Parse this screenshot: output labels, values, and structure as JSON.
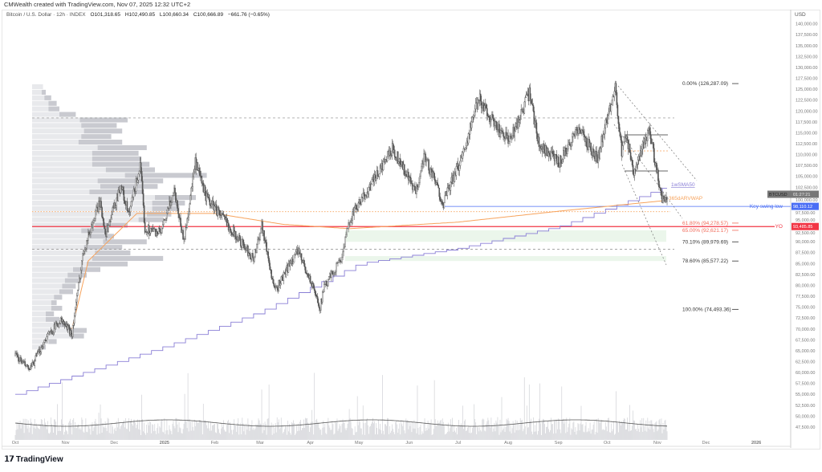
{
  "credit": "CMWealth created with TradingView.com, Nov 07, 2025 12:32 UTC+2",
  "legend": {
    "symbol": "Bitcoin / U.S. Dollar · 12h · INDEX",
    "open": "O101,318.65",
    "high": "H102,490.85",
    "low": "L100,660.34",
    "close": "C100,666.89",
    "change": "−661.76 (−0.65%)"
  },
  "currency": "USD",
  "brand": "TradingView",
  "colors": {
    "candle": "#555555",
    "sma": "#8a7fd6",
    "avwap": "#f7a35c",
    "swing_low": "#4a6ef5",
    "yo": "#f23645",
    "fib": "#333333",
    "fib_red": "#f06b5a",
    "zone": "#e6f4e6"
  },
  "chart_data": {
    "type": "candlestick",
    "interval": "12h",
    "xlim": [
      "2024-10-01",
      "2026-01-20"
    ],
    "ylim": [
      46000,
      142000
    ],
    "x_ticks": [
      [
        "Oct",
        "2024-10-01"
      ],
      [
        "Nov",
        "2024-11-01"
      ],
      [
        "Dec",
        "2024-12-01"
      ],
      [
        "2025",
        "2025-01-01"
      ],
      [
        "Feb",
        "2025-02-01"
      ],
      [
        "Mar",
        "2025-03-01"
      ],
      [
        "Apr",
        "2025-04-01"
      ],
      [
        "May",
        "2025-05-01"
      ],
      [
        "Jun",
        "2025-06-01"
      ],
      [
        "Jul",
        "2025-07-01"
      ],
      [
        "Aug",
        "2025-08-01"
      ],
      [
        "Sep",
        "2025-09-01"
      ],
      [
        "Oct",
        "2025-10-01"
      ],
      [
        "Nov",
        "2025-11-01"
      ],
      [
        "Dec",
        "2025-12-01"
      ],
      [
        "2026",
        "2026-01-01"
      ]
    ],
    "y_ticks": [
      "140,000.00",
      "137,500.00",
      "135,000.00",
      "132,500.00",
      "130,000.00",
      "127,500.00",
      "125,000.00",
      "122,500.00",
      "120,000.00",
      "117,500.00",
      "115,000.00",
      "112,500.00",
      "110,000.00",
      "107,500.00",
      "105,000.00",
      "102,500.00",
      "100,000.00",
      "97,500.00",
      "95,000.00",
      "92,500.00",
      "90,000.00",
      "87,500.00",
      "85,000.00",
      "82,500.00",
      "80,000.00",
      "77,500.00",
      "75,000.00",
      "72,500.00",
      "70,000.00",
      "67,500.00",
      "65,000.00",
      "62,500.00",
      "60,000.00",
      "57,500.00",
      "55,000.00",
      "52,500.00",
      "50,000.00",
      "47,500.00"
    ],
    "price_path": [
      [
        "2024-10-01",
        64000
      ],
      [
        "2024-10-10",
        60500
      ],
      [
        "2024-10-20",
        68000
      ],
      [
        "2024-10-29",
        72000
      ],
      [
        "2024-11-05",
        69000
      ],
      [
        "2024-11-12",
        88000
      ],
      [
        "2024-11-22",
        99000
      ],
      [
        "2024-11-26",
        92000
      ],
      [
        "2024-12-05",
        103000
      ],
      [
        "2024-12-10",
        96000
      ],
      [
        "2024-12-17",
        107500
      ],
      [
        "2024-12-20",
        93000
      ],
      [
        "2024-12-30",
        92000
      ],
      [
        "2025-01-07",
        102000
      ],
      [
        "2025-01-13",
        90000
      ],
      [
        "2025-01-20",
        108000
      ],
      [
        "2025-01-27",
        100000
      ],
      [
        "2025-02-03",
        97000
      ],
      [
        "2025-02-25",
        86000
      ],
      [
        "2025-03-02",
        94000
      ],
      [
        "2025-03-10",
        78500
      ],
      [
        "2025-03-24",
        88000
      ],
      [
        "2025-03-31",
        82000
      ],
      [
        "2025-04-07",
        75000
      ],
      [
        "2025-04-09",
        79000
      ],
      [
        "2025-04-21",
        87000
      ],
      [
        "2025-04-25",
        95000
      ],
      [
        "2025-05-10",
        104000
      ],
      [
        "2025-05-22",
        111500
      ],
      [
        "2025-06-05",
        101000
      ],
      [
        "2025-06-10",
        110000
      ],
      [
        "2025-06-22",
        99000
      ],
      [
        "2025-07-03",
        109000
      ],
      [
        "2025-07-14",
        123000
      ],
      [
        "2025-07-25",
        116000
      ],
      [
        "2025-08-02",
        113000
      ],
      [
        "2025-08-14",
        124000
      ],
      [
        "2025-08-20",
        112500
      ],
      [
        "2025-09-01",
        108000
      ],
      [
        "2025-09-13",
        116000
      ],
      [
        "2025-09-25",
        109000
      ],
      [
        "2025-10-06",
        126000
      ],
      [
        "2025-10-10",
        110000
      ],
      [
        "2025-10-13",
        115000
      ],
      [
        "2025-10-17",
        105000
      ],
      [
        "2025-10-27",
        116000
      ],
      [
        "2025-11-04",
        99000
      ],
      [
        "2025-11-07",
        100666.89
      ]
    ],
    "sma_path": [
      [
        "2024-10-01",
        55000
      ],
      [
        "2025-01-01",
        66000
      ],
      [
        "2025-03-01",
        74000
      ],
      [
        "2025-05-01",
        85000
      ],
      [
        "2025-07-01",
        88500
      ],
      [
        "2025-09-01",
        93500
      ],
      [
        "2025-11-07",
        102700
      ]
    ],
    "avwap_path": [
      [
        "2024-11-05",
        70000
      ],
      [
        "2024-11-15",
        85600
      ],
      [
        "2024-12-15",
        96500
      ],
      [
        "2025-02-01",
        96500
      ],
      [
        "2025-03-15",
        94000
      ],
      [
        "2025-04-25",
        93000
      ],
      [
        "2025-07-01",
        94500
      ],
      [
        "2025-09-01",
        97000
      ],
      [
        "2025-11-07",
        99500
      ]
    ],
    "indicator_labels": {
      "sma": "1wSMA50",
      "avwap": "365dARVWAP"
    },
    "fib_levels": [
      {
        "label": "0.00% (126,287.09)",
        "value": 126287.09,
        "red": false
      },
      {
        "label": "61.80% (94,278.57)",
        "value": 94278.57,
        "red": true
      },
      {
        "label": "65.00% (92,621.17)",
        "value": 92621.17,
        "red": true
      },
      {
        "label": "70.10% (89,979.69)",
        "value": 89979.69,
        "red": false
      },
      {
        "label": "78.60% (85,577.22)",
        "value": 85577.22,
        "red": false
      },
      {
        "label": "100.00% (74,493.36)",
        "value": 74493.36,
        "red": false
      }
    ],
    "swing_low": {
      "label": "Key swing low",
      "value": 98110,
      "price_label": "98,110.12"
    },
    "yo": {
      "label": "YO",
      "value": 93485.85,
      "price_label": "93,485.85"
    },
    "last": {
      "symbol": "BTCUSD",
      "countdown": "01:27:21"
    },
    "volume_profile": [
      [
        8,
        0
      ],
      [
        10,
        3
      ],
      [
        14,
        5
      ],
      [
        18,
        6
      ],
      [
        20,
        8
      ],
      [
        32,
        12
      ],
      [
        70,
        35
      ],
      [
        62,
        26
      ],
      [
        66,
        28
      ],
      [
        58,
        22
      ],
      [
        66,
        32
      ],
      [
        84,
        36
      ],
      [
        78,
        34
      ],
      [
        80,
        36
      ],
      [
        86,
        42
      ],
      [
        90,
        36
      ],
      [
        128,
        60
      ],
      [
        96,
        48
      ],
      [
        92,
        42
      ],
      [
        82,
        40
      ],
      [
        120,
        30
      ],
      [
        112,
        24
      ],
      [
        108,
        20
      ],
      [
        102,
        18
      ],
      [
        96,
        18
      ],
      [
        70,
        24
      ],
      [
        56,
        20
      ],
      [
        60,
        18
      ],
      [
        84,
        32
      ],
      [
        66,
        28
      ],
      [
        72,
        26
      ],
      [
        96,
        52
      ],
      [
        70,
        30
      ],
      [
        50,
        20
      ],
      [
        40,
        14
      ],
      [
        36,
        12
      ],
      [
        32,
        10
      ],
      [
        30,
        10
      ],
      [
        22,
        6
      ],
      [
        18,
        4
      ],
      [
        22,
        8
      ],
      [
        16,
        6
      ],
      [
        20,
        10
      ],
      [
        26,
        10
      ],
      [
        40,
        12
      ],
      [
        38,
        10
      ],
      [
        18,
        6
      ],
      [
        10,
        4
      ]
    ]
  }
}
